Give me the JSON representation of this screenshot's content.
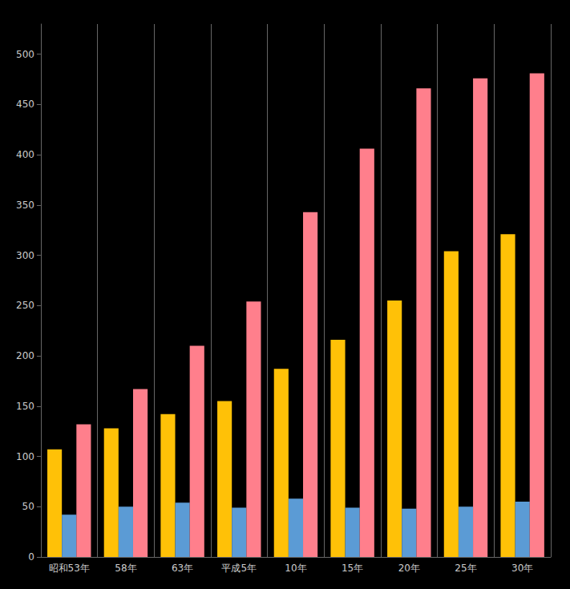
{
  "chart_data": {
    "type": "bar",
    "categories": [
      "昭和53年",
      "58年",
      "63年",
      "平成5年",
      "10年",
      "15年",
      "20年",
      "25年",
      "30年"
    ],
    "series": [
      {
        "color": "#FFC107",
        "values": [
          107,
          128,
          142,
          155,
          187,
          216,
          255,
          304,
          321
        ]
      },
      {
        "color": "#5B9BD5",
        "values": [
          42,
          50,
          54,
          49,
          58,
          49,
          48,
          50,
          55
        ]
      },
      {
        "color": "#FF7F8C",
        "values": [
          132,
          167,
          210,
          254,
          343,
          406,
          466,
          476,
          481
        ]
      }
    ],
    "ylim": [
      0,
      530
    ],
    "yticks": [
      0,
      50,
      100,
      150,
      200,
      250,
      300,
      350,
      400,
      450,
      500
    ],
    "grid": true
  }
}
